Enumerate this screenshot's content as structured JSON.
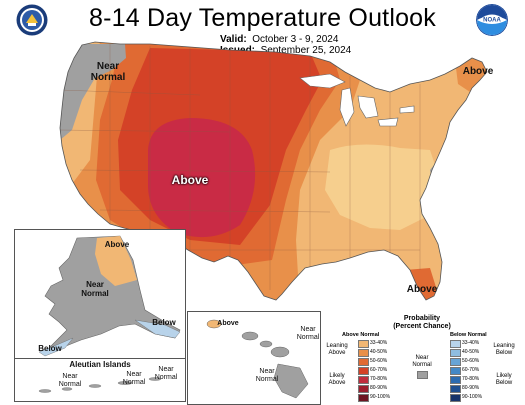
{
  "header": {
    "title": "8-14 Day Temperature Outlook",
    "valid_label": "Valid:",
    "valid_value": "October 3 - 9, 2024",
    "issued_label": "Issued:",
    "issued_value": "September 25, 2024"
  },
  "logos": {
    "left": "department-of-commerce-seal",
    "right": "noaa-logo",
    "noaa_text": "NOAA"
  },
  "map_labels": {
    "conus_near_normal": "Near\nNormal",
    "conus_above_center": "Above",
    "conus_above_northeast": "Above",
    "conus_above_florida": "Above",
    "alaska_above": "Above",
    "alaska_near_normal": "Near\nNormal",
    "alaska_below_se": "Below",
    "alaska_below_sw": "Below",
    "hawaii_above": "Above",
    "hawaii_near_normal_1": "Near\nNormal",
    "hawaii_near_normal_2": "Near\nNormal",
    "aleutian_title": "Aleutian Islands",
    "aleutian_near_normal_1": "Near\nNormal",
    "aleutian_near_normal_2": "Near\nNormal",
    "aleutian_near_normal_3": "Near\nNormal"
  },
  "legend": {
    "title": "Probability\n(Percent Chance)",
    "above_header": "Above Normal",
    "below_header": "Below Normal",
    "near_label": "Near\nNormal",
    "leaning_above": "Leaning\nAbove",
    "likely_above": "Likely\nAbove",
    "leaning_below": "Leaning\nBelow",
    "likely_below": "Likely\nBelow",
    "bins": [
      "33-40%",
      "40-50%",
      "50-60%",
      "60-70%",
      "70-80%",
      "80-90%",
      "90-100%"
    ],
    "above_colors": [
      "#f1b774",
      "#e8904a",
      "#e06a33",
      "#d44227",
      "#c02e3e",
      "#9c1f2e",
      "#6e1421"
    ],
    "below_colors": [
      "#b8d3ea",
      "#8fbde0",
      "#67a4d6",
      "#4388c6",
      "#2c6bb0",
      "#1f4f90",
      "#16336a"
    ],
    "near_color": "#a0a0a0"
  }
}
